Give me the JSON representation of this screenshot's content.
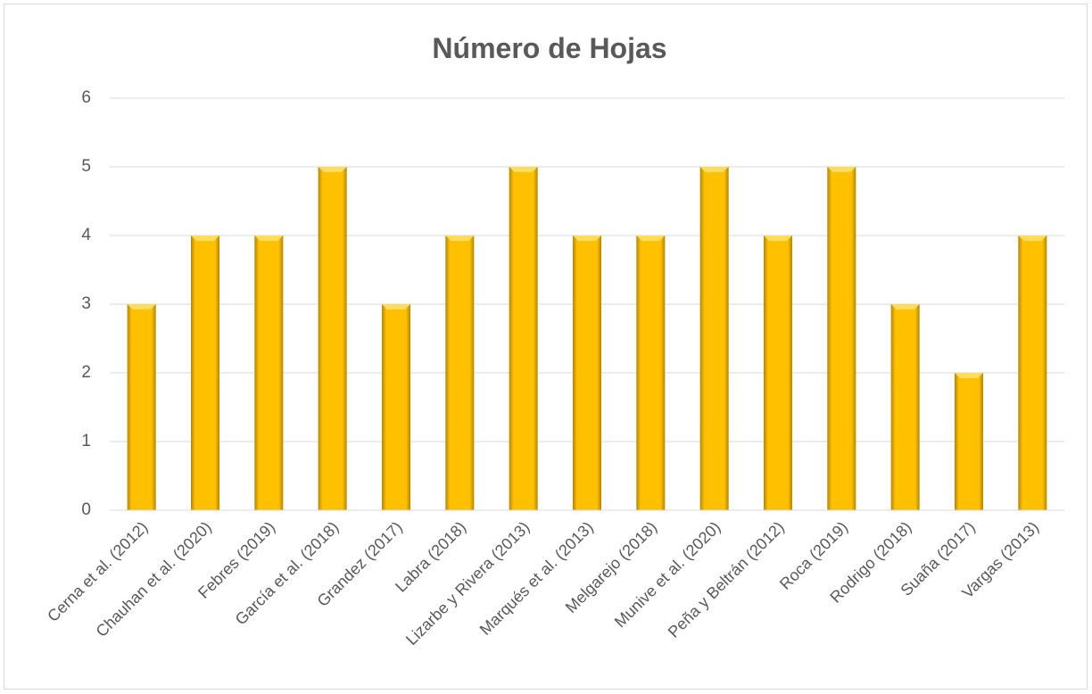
{
  "chart_data": {
    "type": "bar",
    "title": "Número de Hojas",
    "categories": [
      "Cerna et al. (2012)",
      "Chauhan et al. (2020)",
      "Febres (2019)",
      "García et al. (2018)",
      "Grandez (2017)",
      "Labra (2018)",
      "Lizarbe y Rivera (2013)",
      "Marqués et al. (2013)",
      "Melgarejo (2018)",
      "Munive et al. (2020)",
      "Peña y Beltrán (2012)",
      "Roca (2019)",
      "Rodrigo (2018)",
      "Suaña (2017)",
      "Vargas (2013)"
    ],
    "values": [
      3,
      4,
      4,
      5,
      3,
      4,
      5,
      4,
      4,
      5,
      4,
      5,
      3,
      2,
      4
    ],
    "color": "#ffc000",
    "ylim": [
      0,
      6
    ],
    "yticks": [
      0,
      1,
      2,
      3,
      4,
      5,
      6
    ],
    "grid": true
  }
}
